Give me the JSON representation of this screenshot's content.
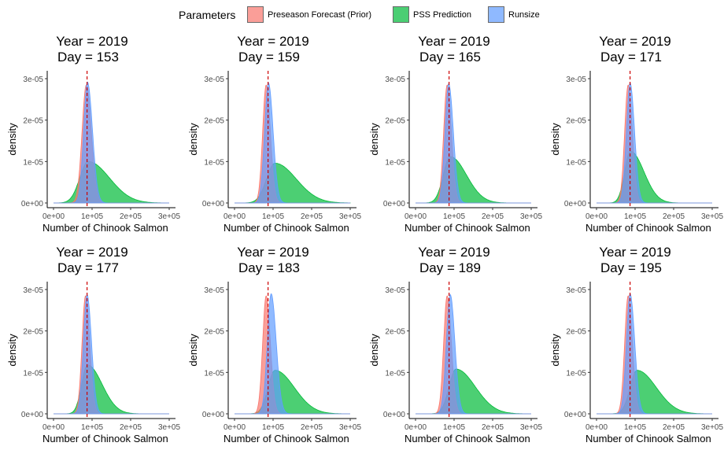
{
  "legend": {
    "title": "Parameters",
    "items": [
      {
        "label": "Preseason Forecast (Prior)",
        "color": "#F8766D"
      },
      {
        "label": "PSS Prediction",
        "color": "#00BA38"
      },
      {
        "label": "Runsize",
        "color": "#619CFF"
      }
    ]
  },
  "chart_data": [
    {
      "type": "area",
      "title_line1": "Year = 2019",
      "title_line2": "Day = 153",
      "xlabel": "Number of Chinook Salmon",
      "ylabel": "density",
      "xlim": [
        0,
        300000
      ],
      "ylim": [
        0,
        3e-05
      ],
      "x_ticks": [
        "0e+00",
        "1e+05",
        "2e+05",
        "3e+05"
      ],
      "y_ticks": [
        "0e+00",
        "1e-05",
        "2e-05",
        "3e-05"
      ],
      "vline_x": 87000,
      "series": [
        {
          "name": "Preseason Forecast (Prior)",
          "peak_x": 85000,
          "peak_y": 2.85e-05,
          "sd_left": 11000,
          "sd_right": 13000
        },
        {
          "name": "PSS Prediction",
          "peak_x": 90000,
          "peak_y": 1e-05,
          "sd_left": 22000,
          "sd_right": 55000
        },
        {
          "name": "Runsize",
          "peak_x": 88000,
          "peak_y": 2.92e-05,
          "sd_left": 10000,
          "sd_right": 13000
        }
      ]
    },
    {
      "type": "area",
      "title_line1": "Year = 2019",
      "title_line2": "Day = 159",
      "xlabel": "Number of Chinook Salmon",
      "ylabel": "density",
      "xlim": [
        0,
        300000
      ],
      "ylim": [
        0,
        3e-05
      ],
      "x_ticks": [
        "0e+00",
        "1e+05",
        "2e+05",
        "3e+05"
      ],
      "y_ticks": [
        "0e+00",
        "1e-05",
        "2e-05",
        "3e-05"
      ],
      "vline_x": 87000,
      "series": [
        {
          "name": "Preseason Forecast (Prior)",
          "peak_x": 82000,
          "peak_y": 2.85e-05,
          "sd_left": 9000,
          "sd_right": 11000
        },
        {
          "name": "PSS Prediction",
          "peak_x": 105000,
          "peak_y": 9.6e-06,
          "sd_left": 22000,
          "sd_right": 55000
        },
        {
          "name": "Runsize",
          "peak_x": 88000,
          "peak_y": 2.9e-05,
          "sd_left": 10000,
          "sd_right": 12000
        }
      ]
    },
    {
      "type": "area",
      "title_line1": "Year = 2019",
      "title_line2": "Day = 165",
      "xlabel": "Number of Chinook Salmon",
      "ylabel": "density",
      "xlim": [
        0,
        300000
      ],
      "ylim": [
        0,
        3e-05
      ],
      "x_ticks": [
        "0e+00",
        "1e+05",
        "2e+05",
        "3e+05"
      ],
      "y_ticks": [
        "0e+00",
        "1e-05",
        "2e-05",
        "3e-05"
      ],
      "vline_x": 87000,
      "series": [
        {
          "name": "Preseason Forecast (Prior)",
          "peak_x": 82000,
          "peak_y": 2.85e-05,
          "sd_left": 9000,
          "sd_right": 11000
        },
        {
          "name": "PSS Prediction",
          "peak_x": 90000,
          "peak_y": 1.12e-05,
          "sd_left": 18000,
          "sd_right": 42000
        },
        {
          "name": "Runsize",
          "peak_x": 86000,
          "peak_y": 2.88e-05,
          "sd_left": 9500,
          "sd_right": 12000
        }
      ]
    },
    {
      "type": "area",
      "title_line1": "Year = 2019",
      "title_line2": "Day = 171",
      "xlabel": "Number of Chinook Salmon",
      "ylabel": "density",
      "xlim": [
        0,
        300000
      ],
      "ylim": [
        0,
        3e-05
      ],
      "x_ticks": [
        "0e+00",
        "1e+05",
        "2e+05",
        "3e+05"
      ],
      "y_ticks": [
        "0e+00",
        "1e-05",
        "2e-05",
        "3e-05"
      ],
      "vline_x": 87000,
      "series": [
        {
          "name": "Preseason Forecast (Prior)",
          "peak_x": 82000,
          "peak_y": 2.85e-05,
          "sd_left": 9000,
          "sd_right": 11000
        },
        {
          "name": "PSS Prediction",
          "peak_x": 88000,
          "peak_y": 1.25e-05,
          "sd_left": 15000,
          "sd_right": 35000
        },
        {
          "name": "Runsize",
          "peak_x": 87000,
          "peak_y": 2.9e-05,
          "sd_left": 9500,
          "sd_right": 11500
        }
      ]
    },
    {
      "type": "area",
      "title_line1": "Year = 2019",
      "title_line2": "Day = 177",
      "xlabel": "Number of Chinook Salmon",
      "ylabel": "density",
      "xlim": [
        0,
        300000
      ],
      "ylim": [
        0,
        3e-05
      ],
      "x_ticks": [
        "0e+00",
        "1e+05",
        "2e+05",
        "3e+05"
      ],
      "y_ticks": [
        "0e+00",
        "1e-05",
        "2e-05",
        "3e-05"
      ],
      "vline_x": 87000,
      "series": [
        {
          "name": "Preseason Forecast (Prior)",
          "peak_x": 83000,
          "peak_y": 2.85e-05,
          "sd_left": 9000,
          "sd_right": 11000
        },
        {
          "name": "PSS Prediction",
          "peak_x": 88000,
          "peak_y": 1.18e-05,
          "sd_left": 15000,
          "sd_right": 38000
        },
        {
          "name": "Runsize",
          "peak_x": 87000,
          "peak_y": 2.88e-05,
          "sd_left": 9500,
          "sd_right": 11500
        }
      ]
    },
    {
      "type": "area",
      "title_line1": "Year = 2019",
      "title_line2": "Day = 183",
      "xlabel": "Number of Chinook Salmon",
      "ylabel": "density",
      "xlim": [
        0,
        300000
      ],
      "ylim": [
        0,
        3e-05
      ],
      "x_ticks": [
        "0e+00",
        "1e+05",
        "2e+05",
        "3e+05"
      ],
      "y_ticks": [
        "0e+00",
        "1e-05",
        "2e-05",
        "3e-05"
      ],
      "vline_x": 87000,
      "series": [
        {
          "name": "Preseason Forecast (Prior)",
          "peak_x": 82000,
          "peak_y": 2.85e-05,
          "sd_left": 9000,
          "sd_right": 11000
        },
        {
          "name": "PSS Prediction",
          "peak_x": 105000,
          "peak_y": 1.05e-05,
          "sd_left": 18000,
          "sd_right": 50000
        },
        {
          "name": "Runsize",
          "peak_x": 95000,
          "peak_y": 2.9e-05,
          "sd_left": 10000,
          "sd_right": 13000
        }
      ]
    },
    {
      "type": "area",
      "title_line1": "Year = 2019",
      "title_line2": "Day = 189",
      "xlabel": "Number of Chinook Salmon",
      "ylabel": "density",
      "xlim": [
        0,
        300000
      ],
      "ylim": [
        0,
        3e-05
      ],
      "x_ticks": [
        "0e+00",
        "1e+05",
        "2e+05",
        "3e+05"
      ],
      "y_ticks": [
        "0e+00",
        "1e-05",
        "2e-05",
        "3e-05"
      ],
      "vline_x": 87000,
      "series": [
        {
          "name": "Preseason Forecast (Prior)",
          "peak_x": 82000,
          "peak_y": 2.85e-05,
          "sd_left": 9000,
          "sd_right": 11000
        },
        {
          "name": "PSS Prediction",
          "peak_x": 105000,
          "peak_y": 1.08e-05,
          "sd_left": 18000,
          "sd_right": 50000
        },
        {
          "name": "Runsize",
          "peak_x": 90000,
          "peak_y": 2.88e-05,
          "sd_left": 10000,
          "sd_right": 12000
        }
      ]
    },
    {
      "type": "area",
      "title_line1": "Year = 2019",
      "title_line2": "Day = 195",
      "xlabel": "Number of Chinook Salmon",
      "ylabel": "density",
      "xlim": [
        0,
        300000
      ],
      "ylim": [
        0,
        3e-05
      ],
      "x_ticks": [
        "0e+00",
        "1e+05",
        "2e+05",
        "3e+05"
      ],
      "y_ticks": [
        "0e+00",
        "1e-05",
        "2e-05",
        "3e-05"
      ],
      "vline_x": 87000,
      "series": [
        {
          "name": "Preseason Forecast (Prior)",
          "peak_x": 82000,
          "peak_y": 2.85e-05,
          "sd_left": 9000,
          "sd_right": 11000
        },
        {
          "name": "PSS Prediction",
          "peak_x": 105000,
          "peak_y": 1.05e-05,
          "sd_left": 18000,
          "sd_right": 50000
        },
        {
          "name": "Runsize",
          "peak_x": 87000,
          "peak_y": 2.9e-05,
          "sd_left": 9500,
          "sd_right": 12000
        }
      ]
    }
  ]
}
